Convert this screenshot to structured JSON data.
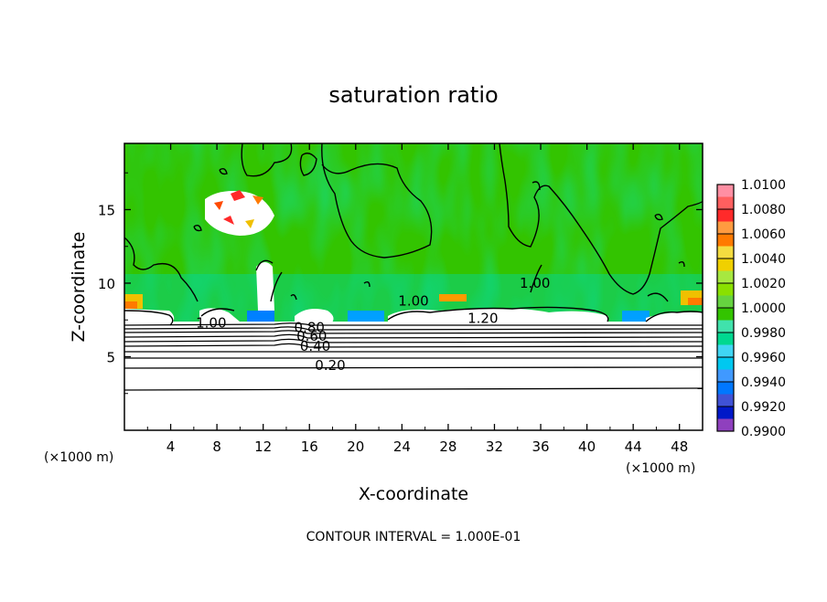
{
  "chart_data": {
    "type": "heatmap",
    "title": "saturation ratio",
    "xlabel": "X-coordinate",
    "ylabel": "Z-coordinate",
    "x_unit_left": "(×1000 m)",
    "x_unit_right": "(×1000 m)",
    "xlim": [
      0,
      50
    ],
    "ylim": [
      0,
      19.5
    ],
    "x_ticks": [
      4,
      8,
      12,
      16,
      20,
      24,
      28,
      32,
      36,
      40,
      44,
      48
    ],
    "x_tick_labels": [
      "4",
      "8",
      "12",
      "16",
      "20",
      "24",
      "28",
      "32",
      "36",
      "40",
      "44",
      "48"
    ],
    "y_ticks": [
      5,
      10,
      15
    ],
    "y_tick_labels": [
      "5",
      "10",
      "15"
    ],
    "footer": "CONTOUR INTERVAL = 1.000E-01",
    "colorbar": {
      "levels": [
        "1.0100",
        "1.0080",
        "1.0060",
        "1.0040",
        "1.0020",
        "1.0000",
        "0.9980",
        "0.9960",
        "0.9940",
        "0.9920",
        "0.9900"
      ],
      "colors": [
        "#ff8fa3",
        "#ff2a2a",
        "#ff7a00",
        "#f0d000",
        "#8ae000",
        "#33c400",
        "#00d890",
        "#00c8f0",
        "#0077ff",
        "#0018c8",
        "#6a00a8"
      ]
    },
    "contour_labels": [
      {
        "text": "0.20",
        "x": 17.8,
        "z": 4.4
      },
      {
        "text": "0.40",
        "x": 16.5,
        "z": 5.7
      },
      {
        "text": "0.60",
        "x": 16.2,
        "z": 6.4
      },
      {
        "text": "0.80",
        "x": 16.0,
        "z": 7.0
      },
      {
        "text": "1.00",
        "x": 7.5,
        "z": 7.3
      },
      {
        "text": "1.00",
        "x": 25.0,
        "z": 8.8
      },
      {
        "text": "1.00",
        "x": 35.5,
        "z": 10.0
      },
      {
        "text": "1.20",
        "x": 31.0,
        "z": 7.6
      }
    ],
    "legend_placement": "right"
  }
}
